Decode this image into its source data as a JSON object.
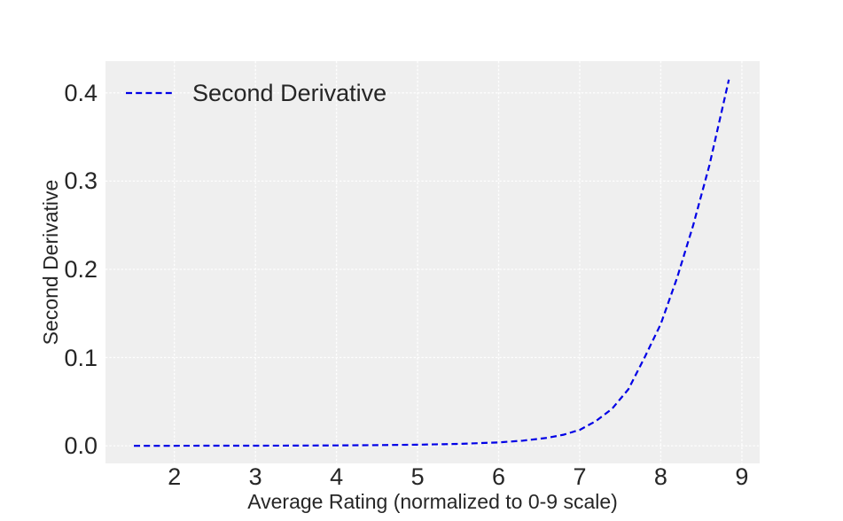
{
  "style": {
    "figure_bg": "#ffffff",
    "plot_bg": "#efefef",
    "grid_color": "#ffffff",
    "line_color": "#0000e6",
    "text_color": "#262626"
  },
  "chart_data": {
    "type": "line",
    "title": "",
    "xlabel": "Average Rating (normalized to 0-9 scale)",
    "ylabel": "Second Derivative",
    "grid": "on",
    "grid_style": "dashed-white",
    "legend_position": "upper-left-inside",
    "legend": {
      "entries": [
        {
          "label": "Second Derivative",
          "color": "#0000e6",
          "line_style": "dashed"
        }
      ]
    },
    "xlim": [
      1.15,
      9.22
    ],
    "ylim": [
      -0.02,
      0.436
    ],
    "xticks": [
      2,
      3,
      4,
      5,
      6,
      7,
      8,
      9
    ],
    "xtick_labels": [
      "2",
      "3",
      "4",
      "5",
      "6",
      "7",
      "8",
      "9"
    ],
    "yticks": [
      0.0,
      0.1,
      0.2,
      0.3,
      0.4
    ],
    "ytick_labels": [
      "0.0",
      "0.1",
      "0.2",
      "0.3",
      "0.4"
    ],
    "series": [
      {
        "name": "Second Derivative",
        "color": "#0000e6",
        "line_style": "dashed",
        "line_width": 2.2,
        "x": [
          1.5,
          2.0,
          2.5,
          3.0,
          3.5,
          4.0,
          4.5,
          5.0,
          5.5,
          6.0,
          6.3,
          6.6,
          6.8,
          7.0,
          7.2,
          7.4,
          7.6,
          7.8,
          8.0,
          8.2,
          8.4,
          8.6,
          8.84
        ],
        "y": [
          0.0,
          0.0,
          0.0001,
          0.0001,
          0.0002,
          0.0004,
          0.0007,
          0.0012,
          0.0021,
          0.0038,
          0.0058,
          0.009,
          0.0125,
          0.018,
          0.028,
          0.042,
          0.064,
          0.1,
          0.138,
          0.19,
          0.25,
          0.318,
          0.415
        ]
      }
    ]
  }
}
